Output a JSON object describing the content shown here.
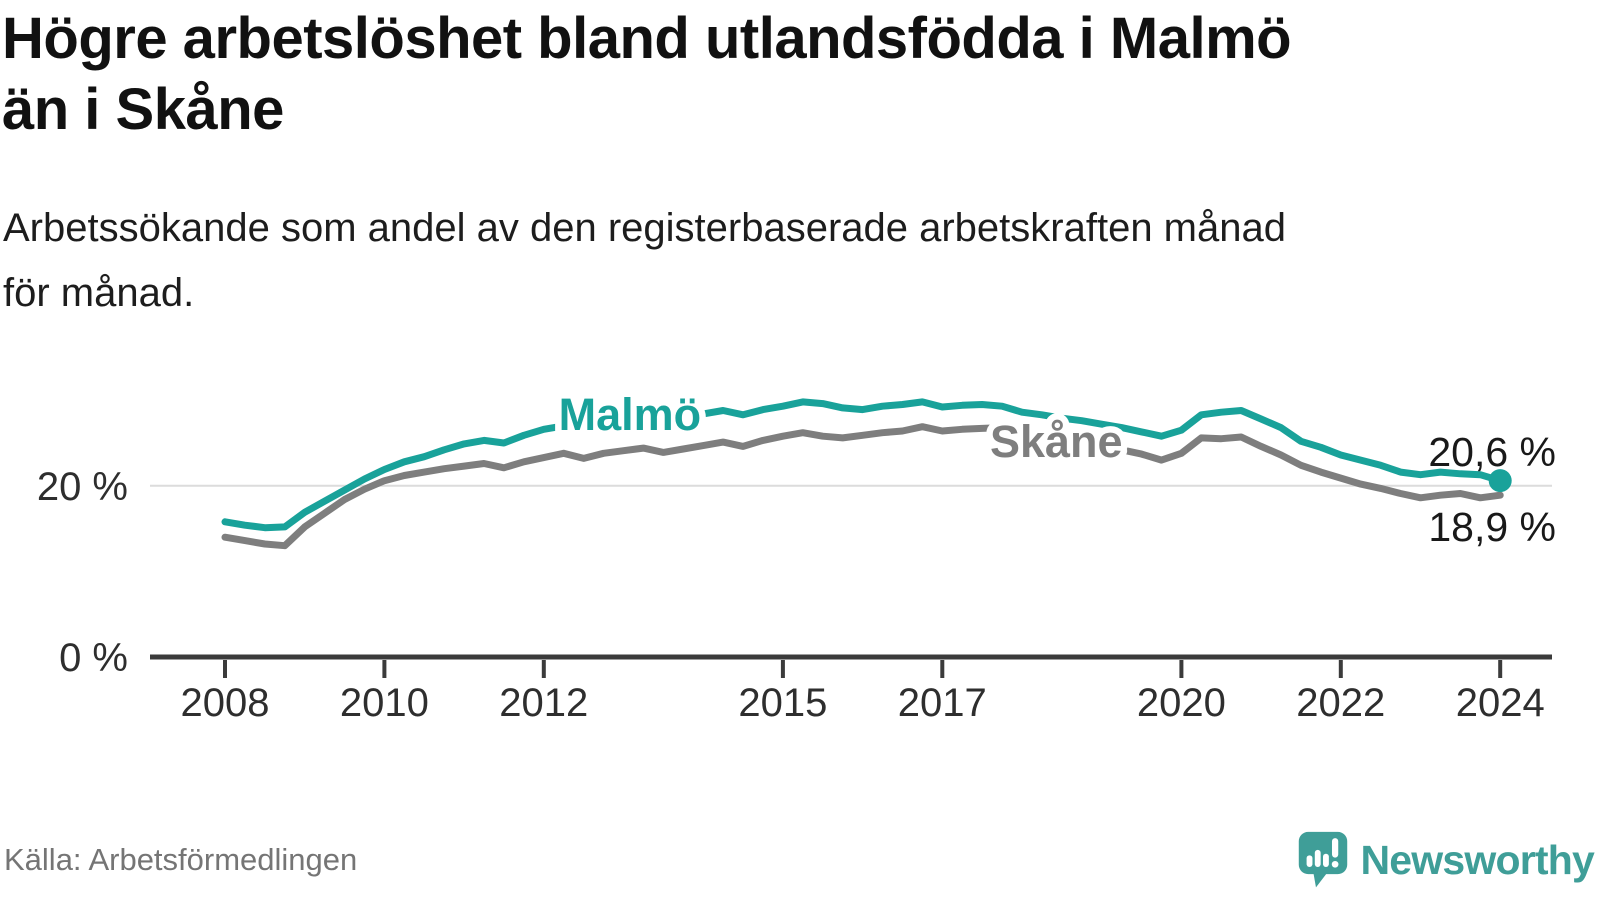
{
  "header": {
    "title": "Högre arbetslöshet bland utlandsfödda i Malmö än i Skåne",
    "title_lines": [
      "Högre arbetslöshet bland utlandsfödda i Malmö",
      "än i Skåne"
    ],
    "subtitle": "Arbetssökande som andel av den registerbaserade arbetskraften månad för månad.",
    "subtitle_lines": [
      "Arbetssökande som andel av den registerbaserade arbetskraften månad",
      "för månad."
    ]
  },
  "chart_data": {
    "type": "line",
    "title": "Högre arbetslöshet bland utlandsfödda i Malmö än i Skåne",
    "xlabel": "",
    "ylabel": "",
    "xlim": [
      2008,
      2024.7
    ],
    "ylim": [
      0,
      33
    ],
    "grid_values": [
      20
    ],
    "x": [
      2008.0,
      2008.25,
      2008.5,
      2008.75,
      2009.0,
      2009.25,
      2009.5,
      2009.75,
      2010.0,
      2010.25,
      2010.5,
      2010.75,
      2011.0,
      2011.25,
      2011.5,
      2011.75,
      2012.0,
      2012.25,
      2012.5,
      2012.75,
      2013.0,
      2013.25,
      2013.5,
      2013.75,
      2014.0,
      2014.25,
      2014.5,
      2014.75,
      2015.0,
      2015.25,
      2015.5,
      2015.75,
      2016.0,
      2016.25,
      2016.5,
      2016.75,
      2017.0,
      2017.25,
      2017.5,
      2017.75,
      2018.0,
      2018.25,
      2018.5,
      2018.75,
      2019.0,
      2019.25,
      2019.5,
      2019.75,
      2020.0,
      2020.25,
      2020.5,
      2020.75,
      2021.0,
      2021.25,
      2021.5,
      2021.75,
      2022.0,
      2022.25,
      2022.5,
      2022.75,
      2023.0,
      2023.25,
      2023.5,
      2023.75,
      2024.0
    ],
    "series": [
      {
        "name": "Skåne",
        "color": "#7e7e7e",
        "end_label": "18,9 %",
        "end_value": 18.9,
        "end_dot": false,
        "values": [
          14.0,
          13.6,
          13.2,
          13.0,
          15.2,
          16.8,
          18.4,
          19.6,
          20.6,
          21.2,
          21.6,
          22.0,
          22.3,
          22.6,
          22.1,
          22.8,
          23.3,
          23.8,
          23.2,
          23.8,
          24.1,
          24.4,
          23.9,
          24.3,
          24.7,
          25.1,
          24.6,
          25.3,
          25.8,
          26.2,
          25.8,
          25.6,
          25.9,
          26.2,
          26.4,
          26.9,
          26.4,
          26.6,
          26.7,
          26.8,
          26.3,
          26.0,
          25.5,
          25.0,
          24.6,
          24.2,
          23.7,
          23.0,
          23.8,
          25.6,
          25.5,
          25.7,
          24.6,
          23.6,
          22.4,
          21.6,
          20.9,
          20.2,
          19.7,
          19.1,
          18.6,
          18.9,
          19.1,
          18.6,
          18.9
        ]
      },
      {
        "name": "Malmö",
        "color": "#19a29a",
        "end_label": "20,6 %",
        "end_value": 20.6,
        "end_dot": true,
        "values": [
          15.8,
          15.4,
          15.1,
          15.2,
          16.9,
          18.2,
          19.5,
          20.8,
          21.9,
          22.8,
          23.4,
          24.2,
          24.9,
          25.3,
          25.0,
          25.9,
          26.6,
          27.0,
          26.5,
          27.0,
          27.3,
          27.7,
          27.5,
          28.0,
          28.4,
          28.8,
          28.3,
          28.9,
          29.3,
          29.8,
          29.6,
          29.1,
          28.9,
          29.3,
          29.5,
          29.8,
          29.2,
          29.4,
          29.5,
          29.3,
          28.6,
          28.3,
          27.9,
          27.6,
          27.2,
          26.8,
          26.3,
          25.8,
          26.5,
          28.3,
          28.6,
          28.8,
          27.8,
          26.8,
          25.2,
          24.5,
          23.6,
          23.0,
          22.4,
          21.6,
          21.3,
          21.6,
          21.4,
          21.3,
          20.6
        ]
      }
    ],
    "xticks": [
      {
        "value": 2008,
        "label": "2008"
      },
      {
        "value": 2010,
        "label": "2010"
      },
      {
        "value": 2012,
        "label": "2012"
      },
      {
        "value": 2015,
        "label": "2015"
      },
      {
        "value": 2017,
        "label": "2017"
      },
      {
        "value": 2020,
        "label": "2020"
      },
      {
        "value": 2022,
        "label": "2022"
      },
      {
        "value": 2024,
        "label": "2024"
      }
    ],
    "yticks": [
      {
        "value": 20,
        "label": "20 %"
      },
      {
        "value": 0,
        "label": "0 %"
      }
    ],
    "legend_position": "inline-series-labels"
  },
  "colors": {
    "malmo": "#19a29a",
    "skane": "#7e7e7e",
    "grid": "#dcdcdc",
    "axis": "#3b3b3b",
    "tick_text": "#2e2e2e",
    "value_label_text": "#191919",
    "source_text": "#757575",
    "brand_teal": "#3f9e98"
  },
  "footer": {
    "source": "Källa: Arbetsförmedlingen",
    "brand": "Newsworthy",
    "logo_icon": "speech-bubble-bar-chart-exclamation"
  }
}
